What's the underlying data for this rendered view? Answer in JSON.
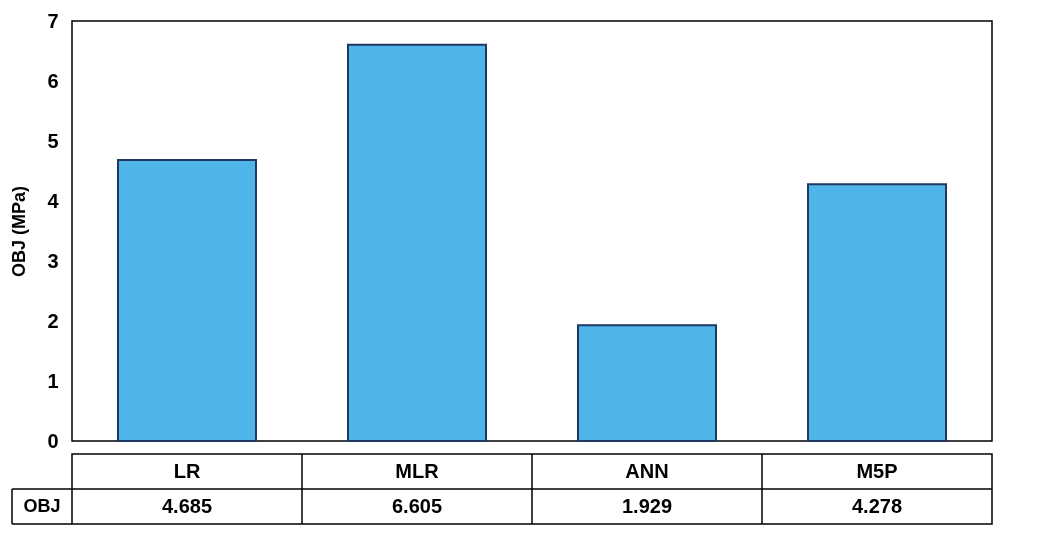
{
  "chart_data": {
    "type": "bar",
    "ylabel": "OBJ (MPa)",
    "categories": [
      "LR",
      "MLR",
      "ANN",
      "M5P"
    ],
    "series": [
      {
        "name": "OBJ",
        "color": "#4db5e8",
        "values": [
          4.685,
          6.605,
          1.929,
          4.278
        ]
      }
    ],
    "ylim": [
      0,
      7
    ],
    "yticks": [
      0,
      1,
      2,
      3,
      4,
      5,
      6,
      7
    ],
    "grid": false,
    "data_labels": true
  }
}
